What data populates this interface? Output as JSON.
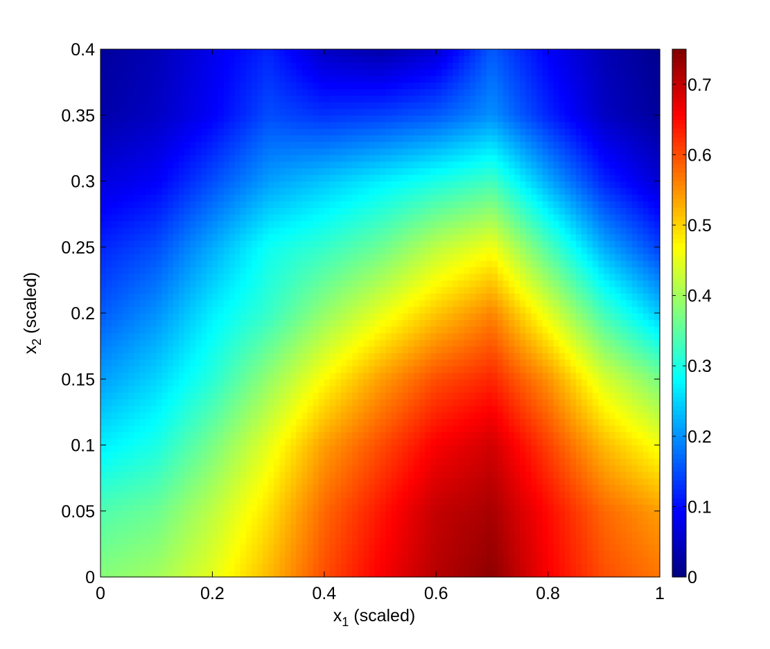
{
  "chart_data": {
    "type": "heatmap",
    "title": "",
    "xlabel": {
      "base": "x",
      "subscript": "1",
      "suffix": " (scaled)"
    },
    "ylabel": {
      "base": "x",
      "subscript": "2",
      "suffix": " (scaled)"
    },
    "xlim": [
      0,
      1
    ],
    "ylim": [
      0,
      0.4
    ],
    "x_ticks": [
      "0",
      "0.2",
      "0.4",
      "0.6",
      "0.8",
      "1"
    ],
    "y_ticks": [
      "0",
      "0.05",
      "0.1",
      "0.15",
      "0.2",
      "0.25",
      "0.3",
      "0.35",
      "0.4"
    ],
    "colorbar": {
      "colormap": "jet",
      "range": [
        0,
        0.75
      ],
      "ticks": [
        "0",
        "0.1",
        "0.2",
        "0.3",
        "0.4",
        "0.5",
        "0.6",
        "0.7"
      ]
    },
    "grid": false,
    "x": [
      0,
      0.1,
      0.2,
      0.3,
      0.4,
      0.5,
      0.6,
      0.7,
      0.8,
      0.9,
      1.0
    ],
    "y": [
      0,
      0.05,
      0.1,
      0.15,
      0.2,
      0.25,
      0.3,
      0.35,
      0.4
    ],
    "z": [
      [
        0.38,
        0.4,
        0.45,
        0.52,
        0.6,
        0.66,
        0.71,
        0.74,
        0.66,
        0.6,
        0.57
      ],
      [
        0.34,
        0.36,
        0.42,
        0.49,
        0.58,
        0.64,
        0.7,
        0.72,
        0.65,
        0.58,
        0.54
      ],
      [
        0.27,
        0.3,
        0.37,
        0.45,
        0.54,
        0.6,
        0.66,
        0.69,
        0.61,
        0.52,
        0.46
      ],
      [
        0.21,
        0.25,
        0.31,
        0.39,
        0.47,
        0.54,
        0.6,
        0.63,
        0.55,
        0.44,
        0.37
      ],
      [
        0.16,
        0.2,
        0.27,
        0.32,
        0.39,
        0.45,
        0.51,
        0.56,
        0.45,
        0.33,
        0.24
      ],
      [
        0.12,
        0.15,
        0.22,
        0.29,
        0.32,
        0.36,
        0.42,
        0.46,
        0.34,
        0.22,
        0.14
      ],
      [
        0.07,
        0.09,
        0.15,
        0.21,
        0.24,
        0.27,
        0.3,
        0.33,
        0.22,
        0.12,
        0.06
      ],
      [
        0.03,
        0.05,
        0.09,
        0.15,
        0.13,
        0.14,
        0.16,
        0.2,
        0.12,
        0.05,
        0.02
      ],
      [
        0.02,
        0.04,
        0.08,
        0.12,
        0.05,
        0.03,
        0.06,
        0.16,
        0.09,
        0.04,
        0.01
      ]
    ]
  }
}
